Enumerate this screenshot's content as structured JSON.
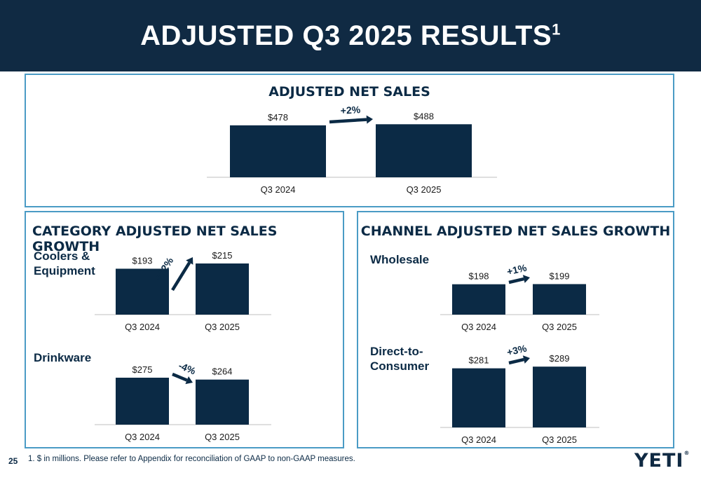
{
  "header": {
    "title": "ADJUSTED Q3 2025 RESULTS",
    "superscript": "1"
  },
  "colors": {
    "bar": "#0b2a45",
    "header_bg": "#102a43",
    "panel_border": "#4a9bc5",
    "axis": "#bfbfbf"
  },
  "panels": {
    "net_sales": {
      "title": "ADJUSTED NET SALES"
    },
    "category": {
      "title": "CATEGORY ADJUSTED NET SALES GROWTH"
    },
    "channel": {
      "title": "CHANNEL ADJUSTED NET SALES GROWTH"
    }
  },
  "chart_data": [
    {
      "id": "net_sales",
      "type": "bar",
      "title": "ADJUSTED NET SALES",
      "categories": [
        "Q3 2024",
        "Q3 2025"
      ],
      "values": [
        478,
        488
      ],
      "value_labels": [
        "$478",
        "$488"
      ],
      "growth_label": "+2%",
      "units": "$ in millions"
    },
    {
      "id": "coolers",
      "type": "bar",
      "title": "Coolers & Equipment",
      "categories": [
        "Q3 2024",
        "Q3 2025"
      ],
      "values": [
        193,
        215
      ],
      "value_labels": [
        "$193",
        "$215"
      ],
      "growth_label": "+12%"
    },
    {
      "id": "drinkware",
      "type": "bar",
      "title": "Drinkware",
      "categories": [
        "Q3 2024",
        "Q3 2025"
      ],
      "values": [
        275,
        264
      ],
      "value_labels": [
        "$275",
        "$264"
      ],
      "growth_label": "-4%"
    },
    {
      "id": "wholesale",
      "type": "bar",
      "title": "Wholesale",
      "categories": [
        "Q3 2024",
        "Q3 2025"
      ],
      "values": [
        198,
        199
      ],
      "value_labels": [
        "$198",
        "$199"
      ],
      "growth_label": "+1%"
    },
    {
      "id": "dtc",
      "type": "bar",
      "title": "Direct-to-Consumer",
      "categories": [
        "Q3 2024",
        "Q3 2025"
      ],
      "values": [
        281,
        289
      ],
      "value_labels": [
        "$281",
        "$289"
      ],
      "growth_label": "+3%"
    }
  ],
  "footer": {
    "page_number": "25",
    "footnote": "1. $ in millions. Please refer to Appendix for reconciliation of GAAP to non-GAAP measures.",
    "logo": "YETI",
    "logo_mark": "®"
  }
}
